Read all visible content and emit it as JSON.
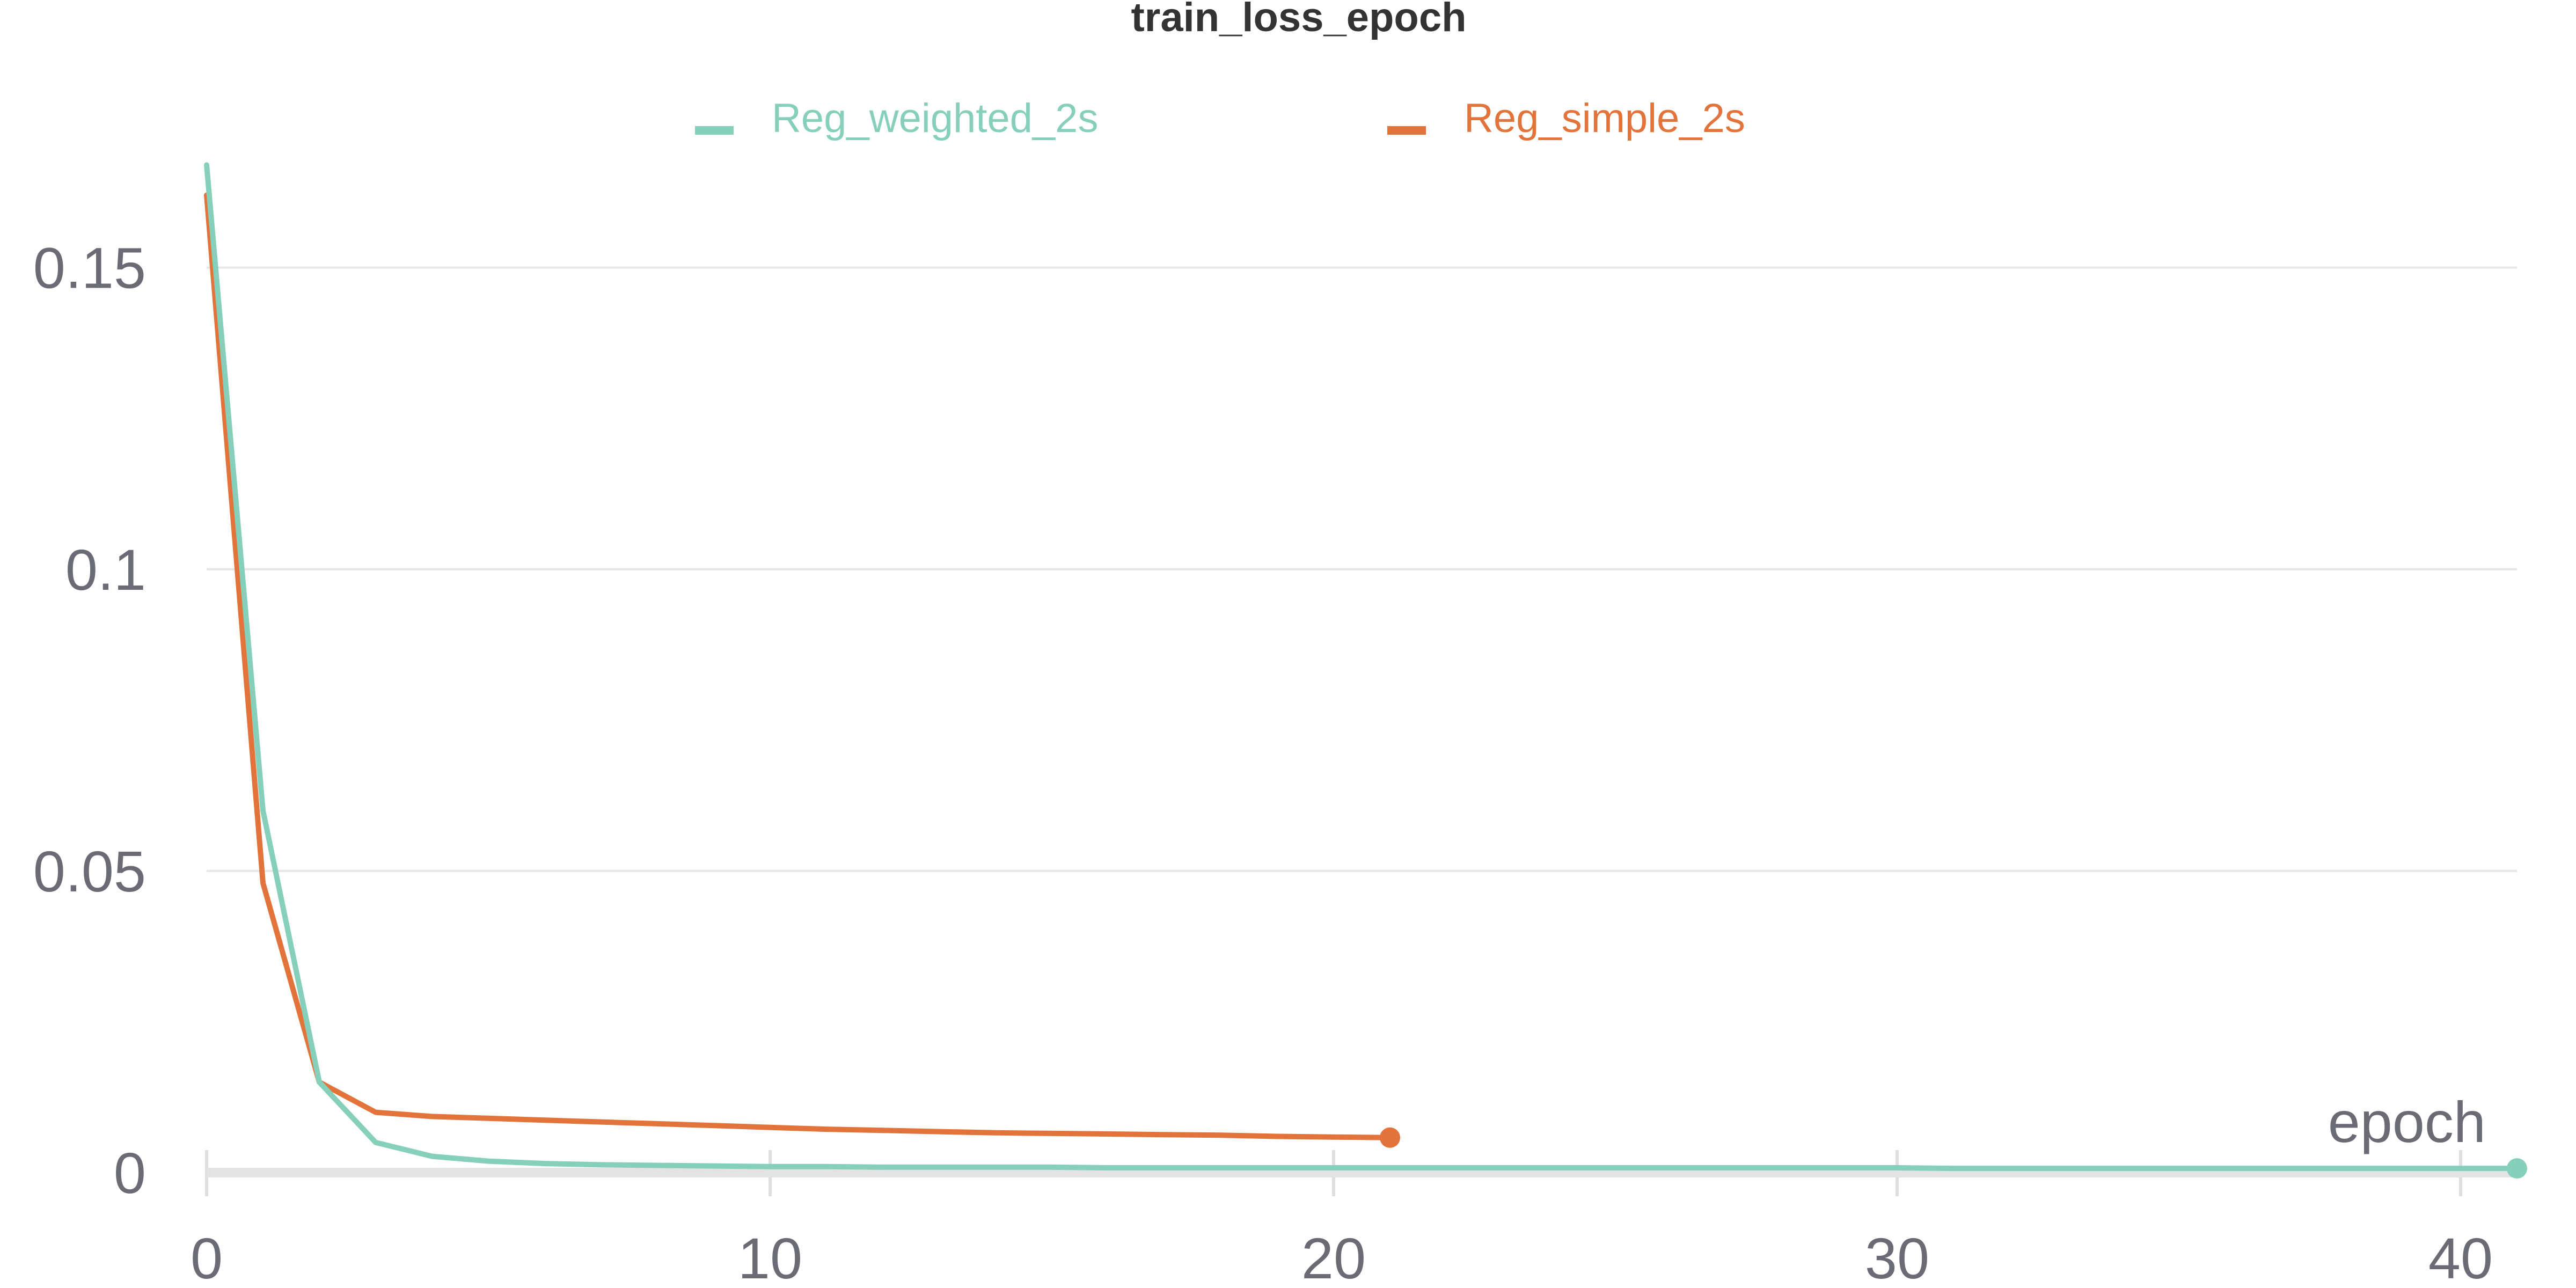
{
  "chart_data": {
    "type": "line",
    "title": "train_loss_epoch",
    "xlabel": "epoch",
    "ylabel": "",
    "xlim": [
      0,
      41
    ],
    "ylim": [
      0,
      0.165
    ],
    "x_ticks": [
      0,
      10,
      20,
      30,
      40
    ],
    "x_tick_labels": [
      "0",
      "10",
      "20",
      "30",
      "40"
    ],
    "y_ticks": [
      0,
      0.05,
      0.1,
      0.15
    ],
    "y_tick_labels": [
      "0",
      "0.05",
      "0.1",
      "0.15"
    ],
    "grid": true,
    "legend_position": "top",
    "series": [
      {
        "name": "Reg_weighted_2s",
        "color": "#86cfbb",
        "x": [
          0,
          1,
          2,
          3,
          4,
          5,
          6,
          7,
          8,
          9,
          10,
          11,
          12,
          13,
          14,
          15,
          16,
          17,
          18,
          19,
          20,
          21,
          22,
          23,
          24,
          25,
          26,
          27,
          28,
          29,
          30,
          31,
          32,
          33,
          34,
          35,
          36,
          37,
          38,
          39,
          40,
          41
        ],
        "y": [
          0.167,
          0.06,
          0.015,
          0.005,
          0.0027,
          0.0019,
          0.0015,
          0.0013,
          0.0012,
          0.0011,
          0.001,
          0.001,
          0.0009,
          0.0009,
          0.0009,
          0.0009,
          0.0008,
          0.0008,
          0.0008,
          0.0008,
          0.0008,
          0.0008,
          0.0008,
          0.0008,
          0.0008,
          0.0008,
          0.0008,
          0.0008,
          0.0008,
          0.0008,
          0.0008,
          0.0007,
          0.0007,
          0.0007,
          0.0007,
          0.0007,
          0.0007,
          0.0007,
          0.0007,
          0.0007,
          0.0007,
          0.0007
        ]
      },
      {
        "name": "Reg_simple_2s",
        "color": "#e2733a",
        "x": [
          0,
          1,
          2,
          3,
          4,
          5,
          6,
          7,
          8,
          9,
          10,
          11,
          12,
          13,
          14,
          15,
          16,
          17,
          18,
          19,
          20,
          21
        ],
        "y": [
          0.162,
          0.048,
          0.015,
          0.01,
          0.0093,
          0.009,
          0.0087,
          0.0084,
          0.0081,
          0.0078,
          0.0075,
          0.0072,
          0.007,
          0.0068,
          0.0066,
          0.0065,
          0.0064,
          0.0063,
          0.0062,
          0.006,
          0.0059,
          0.0058
        ]
      }
    ]
  }
}
